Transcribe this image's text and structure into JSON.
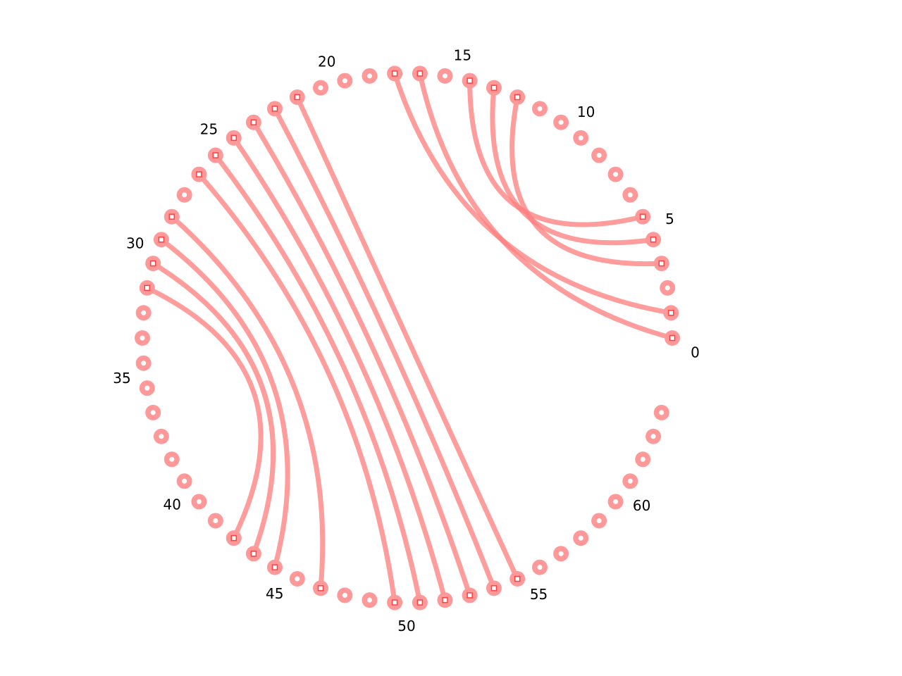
{
  "diagram": {
    "type": "arc-diagram",
    "node_count": 64,
    "tick_labels": [
      "0",
      "5",
      "10",
      "15",
      "20",
      "25",
      "30",
      "35",
      "40",
      "45",
      "50",
      "55",
      "60"
    ],
    "tick_every": 5,
    "links": [
      [
        0,
        16
      ],
      [
        1,
        17
      ],
      [
        3,
        12
      ],
      [
        4,
        13
      ],
      [
        5,
        14
      ],
      [
        21,
        54
      ],
      [
        22,
        53
      ],
      [
        23,
        52
      ],
      [
        24,
        51
      ],
      [
        25,
        50
      ],
      [
        26,
        49
      ],
      [
        28,
        46
      ],
      [
        29,
        44
      ],
      [
        30,
        43
      ],
      [
        31,
        42
      ]
    ],
    "colors": {
      "node": "#ff9999",
      "node_center": "#ffffff",
      "link": "#ff8080",
      "link_end": "#ff4040"
    }
  }
}
